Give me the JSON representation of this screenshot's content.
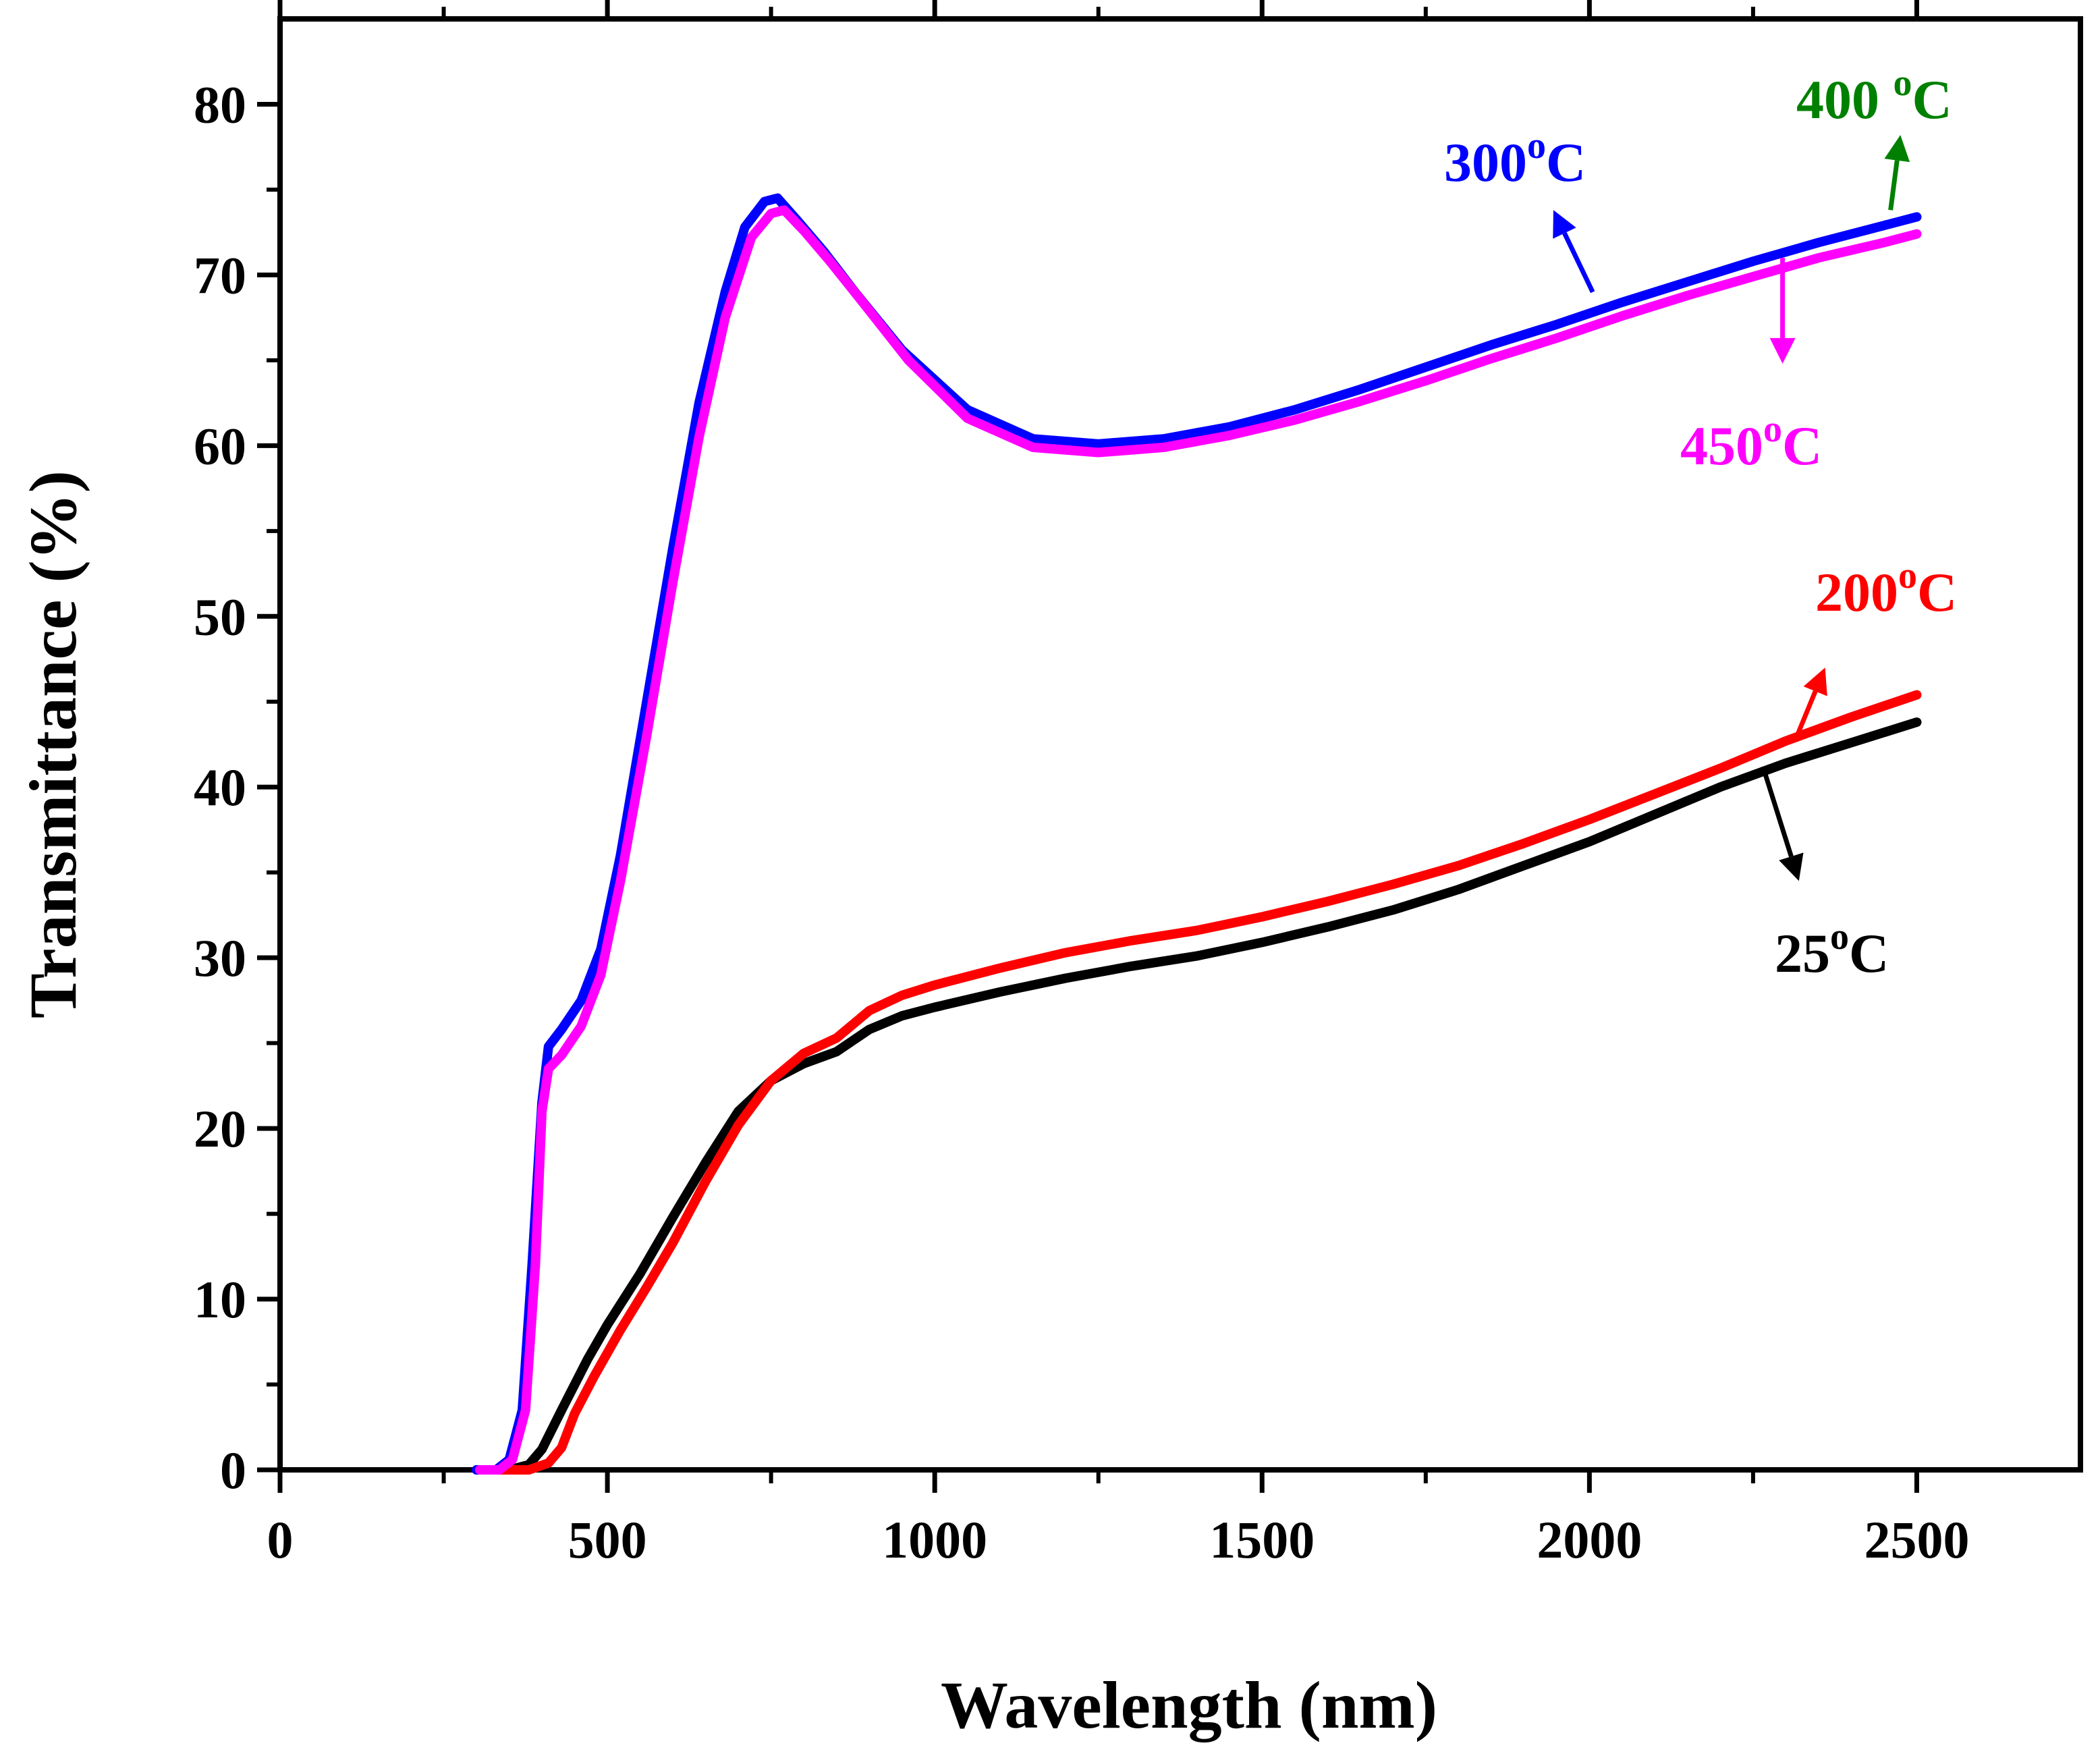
{
  "chart_data": {
    "type": "line",
    "title": "",
    "xlabel": "Wavelength (nm)",
    "ylabel": "Transmittance (%)",
    "xlim": [
      0,
      2750
    ],
    "ylim": [
      0,
      85
    ],
    "xticks": [
      0,
      500,
      1000,
      1500,
      2000,
      2500
    ],
    "xtick_labels": [
      "0",
      "500",
      "1000",
      "1500",
      "2000",
      "2500"
    ],
    "yticks": [
      0,
      10,
      20,
      30,
      40,
      50,
      60,
      70,
      80
    ],
    "ytick_labels": [
      "0",
      "10",
      "20",
      "30",
      "40",
      "50",
      "60",
      "70",
      "80"
    ],
    "grid": false,
    "legend": "none",
    "series": [
      {
        "color": "#000000",
        "points": [
          [
            300,
            0
          ],
          [
            350,
            0
          ],
          [
            380,
            0.3
          ],
          [
            400,
            1.2
          ],
          [
            430,
            3.5
          ],
          [
            470,
            6.5
          ],
          [
            500,
            8.5
          ],
          [
            550,
            11.5
          ],
          [
            600,
            14.8
          ],
          [
            650,
            18
          ],
          [
            700,
            21
          ],
          [
            750,
            22.8
          ],
          [
            800,
            23.8
          ],
          [
            850,
            24.5
          ],
          [
            900,
            25.8
          ],
          [
            950,
            26.6
          ],
          [
            1000,
            27.1
          ],
          [
            1100,
            28
          ],
          [
            1200,
            28.8
          ],
          [
            1300,
            29.5
          ],
          [
            1400,
            30.1
          ],
          [
            1500,
            30.9
          ],
          [
            1600,
            31.8
          ],
          [
            1700,
            32.8
          ],
          [
            1800,
            34
          ],
          [
            1900,
            35.4
          ],
          [
            2000,
            36.8
          ],
          [
            2100,
            38.4
          ],
          [
            2200,
            40
          ],
          [
            2300,
            41.4
          ],
          [
            2400,
            42.6
          ],
          [
            2500,
            43.8
          ]
        ]
      },
      {
        "color": "#ff0000",
        "points": [
          [
            320,
            0
          ],
          [
            380,
            0
          ],
          [
            410,
            0.4
          ],
          [
            430,
            1.3
          ],
          [
            450,
            3.3
          ],
          [
            480,
            5.5
          ],
          [
            520,
            8.2
          ],
          [
            560,
            10.7
          ],
          [
            600,
            13.3
          ],
          [
            650,
            16.9
          ],
          [
            700,
            20.2
          ],
          [
            750,
            22.8
          ],
          [
            800,
            24.4
          ],
          [
            850,
            25.3
          ],
          [
            900,
            26.9
          ],
          [
            950,
            27.8
          ],
          [
            1000,
            28.4
          ],
          [
            1100,
            29.4
          ],
          [
            1200,
            30.3
          ],
          [
            1300,
            31
          ],
          [
            1400,
            31.6
          ],
          [
            1500,
            32.4
          ],
          [
            1600,
            33.3
          ],
          [
            1700,
            34.3
          ],
          [
            1800,
            35.4
          ],
          [
            1900,
            36.7
          ],
          [
            2000,
            38.1
          ],
          [
            2100,
            39.6
          ],
          [
            2200,
            41.1
          ],
          [
            2300,
            42.7
          ],
          [
            2400,
            44.1
          ],
          [
            2500,
            45.4
          ]
        ]
      },
      {
        "color": "#0000ff",
        "points": [
          [
            300,
            0
          ],
          [
            330,
            0
          ],
          [
            350,
            0.6
          ],
          [
            370,
            3.5
          ],
          [
            385,
            12
          ],
          [
            400,
            21.5
          ],
          [
            410,
            24.8
          ],
          [
            430,
            25.8
          ],
          [
            460,
            27.5
          ],
          [
            490,
            30.5
          ],
          [
            520,
            36
          ],
          [
            560,
            45
          ],
          [
            600,
            54
          ],
          [
            640,
            62.5
          ],
          [
            680,
            69
          ],
          [
            710,
            72.8
          ],
          [
            740,
            74.3
          ],
          [
            760,
            74.5
          ],
          [
            790,
            73.2
          ],
          [
            830,
            71.4
          ],
          [
            880,
            68.9
          ],
          [
            950,
            65.6
          ],
          [
            1050,
            62.1
          ],
          [
            1150,
            60.4
          ],
          [
            1250,
            60.1
          ],
          [
            1350,
            60.4
          ],
          [
            1450,
            61.1
          ],
          [
            1550,
            62.1
          ],
          [
            1650,
            63.3
          ],
          [
            1750,
            64.6
          ],
          [
            1850,
            65.9
          ],
          [
            1950,
            67.1
          ],
          [
            2050,
            68.4
          ],
          [
            2150,
            69.6
          ],
          [
            2250,
            70.8
          ],
          [
            2350,
            71.9
          ],
          [
            2450,
            72.9
          ],
          [
            2500,
            73.4
          ]
        ]
      },
      {
        "color": "#ff00ff",
        "points": [
          [
            305,
            0
          ],
          [
            335,
            0
          ],
          [
            355,
            0.6
          ],
          [
            375,
            3.5
          ],
          [
            390,
            12
          ],
          [
            400,
            21
          ],
          [
            410,
            23.5
          ],
          [
            430,
            24.3
          ],
          [
            460,
            26
          ],
          [
            490,
            29
          ],
          [
            520,
            34.5
          ],
          [
            560,
            43
          ],
          [
            600,
            52
          ],
          [
            640,
            60.5
          ],
          [
            680,
            67.5
          ],
          [
            720,
            72.2
          ],
          [
            750,
            73.6
          ],
          [
            770,
            73.8
          ],
          [
            800,
            72.6
          ],
          [
            840,
            70.8
          ],
          [
            890,
            68.4
          ],
          [
            960,
            65
          ],
          [
            1050,
            61.6
          ],
          [
            1150,
            59.9
          ],
          [
            1250,
            59.6
          ],
          [
            1350,
            59.9
          ],
          [
            1450,
            60.6
          ],
          [
            1550,
            61.5
          ],
          [
            1650,
            62.6
          ],
          [
            1750,
            63.8
          ],
          [
            1850,
            65.1
          ],
          [
            1950,
            66.3
          ],
          [
            2050,
            67.6
          ],
          [
            2150,
            68.8
          ],
          [
            2250,
            69.9
          ],
          [
            2350,
            71
          ],
          [
            2450,
            71.9
          ],
          [
            2500,
            72.4
          ]
        ]
      }
    ],
    "annotations": [
      {
        "base": "300",
        "sup": "o",
        "suffix": "C",
        "color": "#0000ff"
      },
      {
        "base": "400 ",
        "sup": "o",
        "suffix": "C",
        "color": "#008000"
      },
      {
        "base": "450",
        "sup": "o",
        "suffix": "C",
        "color": "#ff00ff"
      },
      {
        "base": "200",
        "sup": "o",
        "suffix": "C",
        "color": "#ff0000"
      },
      {
        "base": "25",
        "sup": "o",
        "suffix": "C",
        "color": "#000000"
      }
    ]
  }
}
